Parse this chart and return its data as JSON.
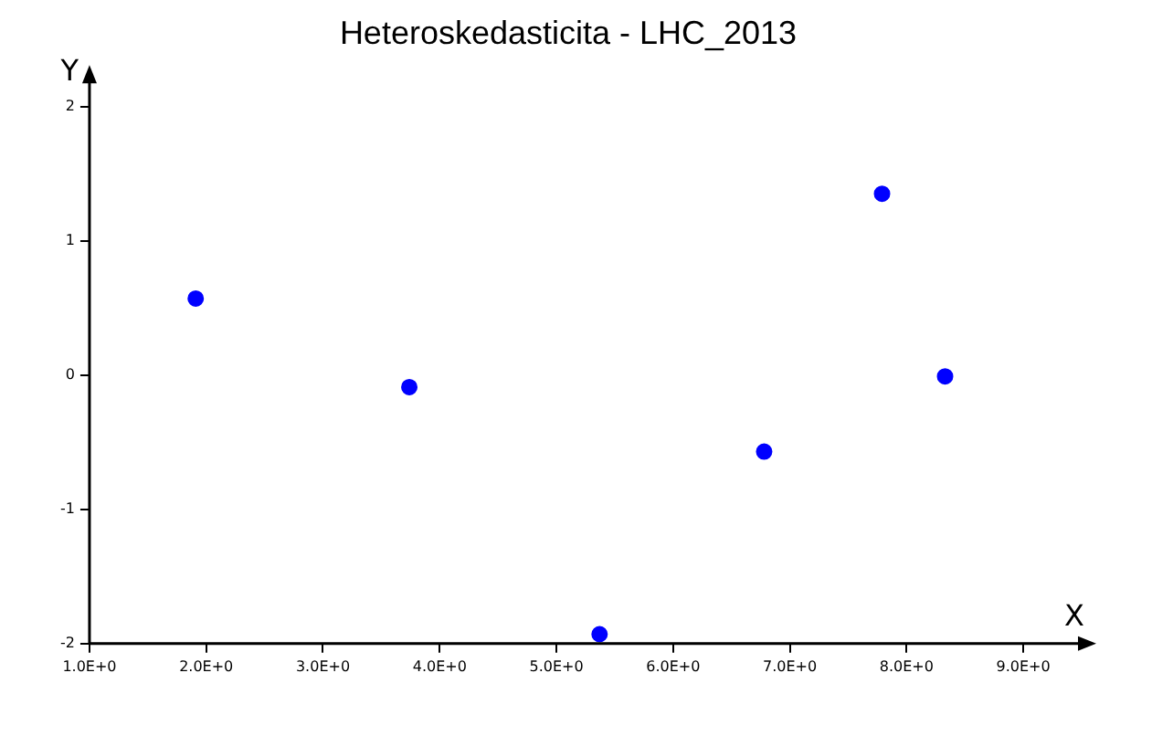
{
  "chart_data": {
    "type": "scatter",
    "title": "Heteroskedasticita - LHC_2013",
    "xlabel": "X",
    "ylabel": "Y",
    "x": [
      1.91,
      3.74,
      5.37,
      6.78,
      7.79,
      8.33
    ],
    "series": [
      {
        "color": "#0000ff",
        "values": [
          0.57,
          -0.09,
          -1.93,
          -0.57,
          1.35,
          -0.01
        ]
      }
    ],
    "xlim": [
      1,
      9.5
    ],
    "ylim": [
      -2,
      2.2
    ],
    "xticks": [
      {
        "value": 1,
        "label": "1.0E+0"
      },
      {
        "value": 2,
        "label": "2.0E+0"
      },
      {
        "value": 3,
        "label": "3.0E+0"
      },
      {
        "value": 4,
        "label": "4.0E+0"
      },
      {
        "value": 5,
        "label": "5.0E+0"
      },
      {
        "value": 6,
        "label": "6.0E+0"
      },
      {
        "value": 7,
        "label": "7.0E+0"
      },
      {
        "value": 8,
        "label": "8.0E+0"
      },
      {
        "value": 9,
        "label": "9.0E+0"
      }
    ],
    "yticks": [
      -2,
      -1,
      0,
      1,
      2
    ],
    "grid": false,
    "legend": false,
    "marker": "circle"
  }
}
